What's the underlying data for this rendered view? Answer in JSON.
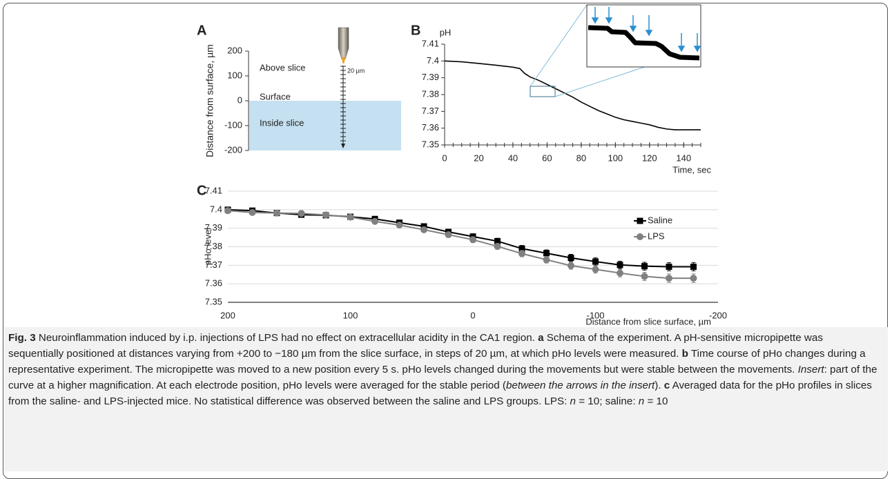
{
  "chart_data": [
    {
      "type": "schematic",
      "panel": "A",
      "ylabel": "Distance from surface, µm",
      "ylim": [
        -200,
        200
      ],
      "yticks": [
        200,
        100,
        0,
        -100,
        -200
      ],
      "regions": [
        "Above slice",
        "Surface",
        "Inside slice"
      ],
      "scale_label": "20 µm",
      "fill": "#c5e0f0"
    },
    {
      "type": "line",
      "panel": "B",
      "ylabel": "pH",
      "xlabel": "Time, sec",
      "xlim": [
        0,
        150
      ],
      "ylim": [
        7.35,
        7.41
      ],
      "xticks": [
        0,
        20,
        40,
        60,
        80,
        100,
        120,
        140
      ],
      "yticks": [
        7.35,
        7.36,
        7.37,
        7.38,
        7.39,
        7.4,
        7.41
      ],
      "grid": false,
      "x": [
        0,
        10,
        20,
        30,
        40,
        44,
        45,
        47,
        50,
        55,
        60,
        65,
        70,
        75,
        80,
        85,
        90,
        95,
        100,
        105,
        110,
        115,
        120,
        125,
        130,
        135,
        140,
        145,
        150
      ],
      "series": [
        {
          "color": "#000000",
          "values": [
            7.4,
            7.3995,
            7.3985,
            7.3975,
            7.3963,
            7.3955,
            7.3945,
            7.3925,
            7.3905,
            7.3885,
            7.386,
            7.3835,
            7.381,
            7.3785,
            7.3755,
            7.373,
            7.3705,
            7.3685,
            7.3665,
            7.365,
            7.364,
            7.363,
            7.362,
            7.3605,
            7.3595,
            7.359,
            7.359,
            7.359,
            7.359
          ]
        }
      ]
    },
    {
      "type": "line",
      "panel": "C",
      "ylabel": "pHo level",
      "xlabel": "Distance from slice surface, µm",
      "xlim": [
        200,
        -200
      ],
      "ylim": [
        7.35,
        7.41
      ],
      "xticks": [
        200,
        100,
        0,
        -100,
        -200
      ],
      "yticks": [
        7.35,
        7.36,
        7.37,
        7.38,
        7.39,
        7.4,
        7.41
      ],
      "grid": true,
      "legend": "right",
      "x": [
        200,
        180,
        160,
        140,
        120,
        100,
        80,
        60,
        40,
        20,
        0,
        -20,
        -40,
        -60,
        -80,
        -100,
        -120,
        -140,
        -160,
        -180
      ],
      "series": [
        {
          "name": "Saline",
          "color": "#000000",
          "marker": "square",
          "values": [
            7.4,
            7.3995,
            7.3982,
            7.3973,
            7.397,
            7.3962,
            7.395,
            7.393,
            7.391,
            7.388,
            7.3855,
            7.383,
            7.379,
            7.3765,
            7.374,
            7.372,
            7.3702,
            7.3695,
            7.3692,
            7.3692
          ],
          "errors": [
            0.0008,
            0.0008,
            0.0009,
            0.0009,
            0.001,
            0.001,
            0.0011,
            0.0012,
            0.0013,
            0.0014,
            0.0015,
            0.0016,
            0.0017,
            0.0018,
            0.0019,
            0.002,
            0.002,
            0.0021,
            0.0022,
            0.0022
          ]
        },
        {
          "name": "LPS",
          "color": "#808080",
          "marker": "circle",
          "values": [
            7.3995,
            7.3985,
            7.3982,
            7.398,
            7.3972,
            7.396,
            7.3937,
            7.3917,
            7.3892,
            7.3865,
            7.3838,
            7.3802,
            7.3763,
            7.373,
            7.3698,
            7.3678,
            7.3658,
            7.364,
            7.363,
            7.363
          ],
          "errors": [
            0.0008,
            0.0008,
            0.0009,
            0.0009,
            0.001,
            0.001,
            0.0011,
            0.0012,
            0.0013,
            0.0014,
            0.0015,
            0.0016,
            0.0017,
            0.0018,
            0.0019,
            0.002,
            0.0021,
            0.0022,
            0.0023,
            0.0023
          ]
        }
      ]
    }
  ],
  "caption": {
    "segments": [
      {
        "text": "Fig. 3",
        "style": "bold"
      },
      {
        "text": " Neuroinflammation induced by i.p. injections of LPS had no effect on extracellular acidity in the CA1 region. ",
        "style": "normal"
      },
      {
        "text": "a",
        "style": "bold"
      },
      {
        "text": " Schema of the experiment. A pH-sensitive micropipette was sequentially positioned at distances varying from +200 to −180 µm from the slice surface, in steps of 20 µm, at which pHo levels were measured. ",
        "style": "normal"
      },
      {
        "text": "b",
        "style": "bold"
      },
      {
        "text": " Time course of pHo changes during a representative experiment. The micropipette was moved to a new position every 5 s. pHo levels changed during the movements but were stable between the movements. ",
        "style": "normal"
      },
      {
        "text": "Insert",
        "style": "italic"
      },
      {
        "text": ": part of the curve at a higher magnification. At each electrode position, pHo levels were averaged for the stable period (",
        "style": "normal"
      },
      {
        "text": "between the arrows in the insert",
        "style": "italic"
      },
      {
        "text": "). ",
        "style": "normal"
      },
      {
        "text": "c",
        "style": "bold"
      },
      {
        "text": " Averaged data for the pHo profiles in slices from the saline- and LPS-injected mice. No statistical difference was observed between the saline and LPS groups. LPS: ",
        "style": "normal"
      },
      {
        "text": "n",
        "style": "italic"
      },
      {
        "text": " = 10; saline: ",
        "style": "normal"
      },
      {
        "text": "n",
        "style": "italic"
      },
      {
        "text": " = 10",
        "style": "normal"
      }
    ]
  }
}
